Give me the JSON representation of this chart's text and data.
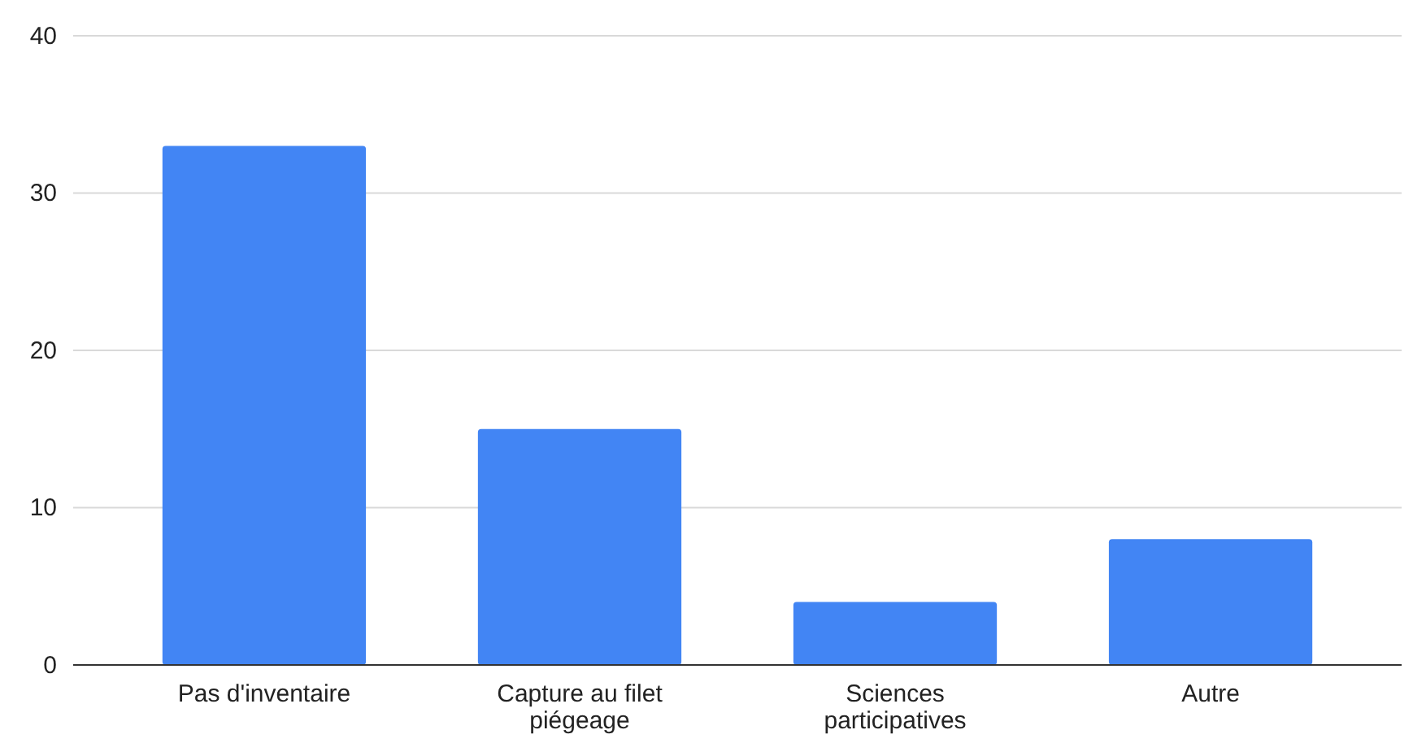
{
  "chart_data": {
    "type": "bar",
    "categories": [
      "Pas d'inventaire",
      "Capture au filet piégeage",
      "Sciences participatives",
      "Autre"
    ],
    "values": [
      33,
      15,
      4,
      8
    ],
    "color": "#4285f4",
    "ylim": [
      0,
      40
    ],
    "yticks": [
      0,
      10,
      20,
      30,
      40
    ],
    "grid": "y"
  }
}
